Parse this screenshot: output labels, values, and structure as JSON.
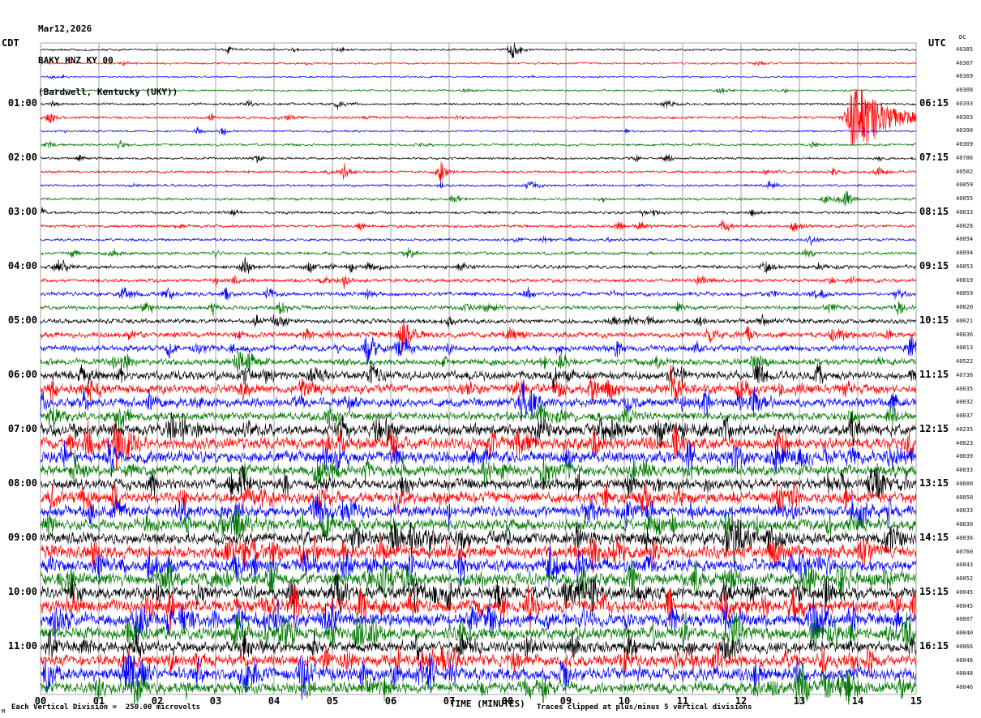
{
  "header": {
    "date": "Mar12,2026",
    "station": "BAKY HNZ KY 00",
    "location": "(Bardwell, Kentucky (UKY))"
  },
  "axes": {
    "left_timezone": "CDT",
    "right_timezone": "UTC",
    "dc_label": "DC",
    "x_label": "TIME (MINUTES)",
    "x_ticks": [
      "00",
      "01",
      "02",
      "03",
      "04",
      "05",
      "06",
      "07",
      "08",
      "09",
      "10",
      "11",
      "12",
      "13",
      "14",
      "15"
    ]
  },
  "footer": {
    "scale_note": "Each Vertical Division =  250.00 microvolts",
    "clip_note": "Traces clipped at plus/minus 5 vertical divisions",
    "corner_mark": "M"
  },
  "chart_data": {
    "type": "line",
    "subtype": "helicorder-seismogram",
    "xlabel": "TIME (MINUTES)",
    "x_range": [
      0,
      15
    ],
    "minutes_per_row": 15,
    "start_cdt": "00:00",
    "start_utc": "05:15",
    "clip_note_divisions": 5,
    "microvolts_per_division": 250.0,
    "grid_color": "#8a8a8a",
    "palette": {
      "black": "#000000",
      "red": "#ff0000",
      "blue": "#0000ff",
      "green": "#007700"
    },
    "rows": [
      {
        "cdt": "",
        "utc": "",
        "dc": "40385",
        "color": "black",
        "amp": 0.6
      },
      {
        "cdt": "",
        "utc": "",
        "dc": "40307",
        "color": "red",
        "amp": 0.6
      },
      {
        "cdt": "",
        "utc": "",
        "dc": "40369",
        "color": "blue",
        "amp": 0.5
      },
      {
        "cdt": "",
        "utc": "",
        "dc": "40308",
        "color": "green",
        "amp": 0.6
      },
      {
        "cdt": "01:00",
        "utc": "06:15",
        "dc": "40393",
        "color": "black",
        "amp": 0.7
      },
      {
        "cdt": "",
        "utc": "",
        "dc": "40303",
        "color": "red",
        "amp": 0.8
      },
      {
        "cdt": "",
        "utc": "",
        "dc": "40390",
        "color": "blue",
        "amp": 0.6
      },
      {
        "cdt": "",
        "utc": "",
        "dc": "40309",
        "color": "green",
        "amp": 0.7
      },
      {
        "cdt": "02:00",
        "utc": "07:15",
        "dc": "40786",
        "color": "black",
        "amp": 0.7
      },
      {
        "cdt": "",
        "utc": "",
        "dc": "40502",
        "color": "red",
        "amp": 0.8
      },
      {
        "cdt": "",
        "utc": "",
        "dc": "40059",
        "color": "blue",
        "amp": 0.7
      },
      {
        "cdt": "",
        "utc": "",
        "dc": "40055",
        "color": "green",
        "amp": 0.8
      },
      {
        "cdt": "03:00",
        "utc": "08:15",
        "dc": "40033",
        "color": "black",
        "amp": 0.8
      },
      {
        "cdt": "",
        "utc": "",
        "dc": "40028",
        "color": "red",
        "amp": 0.9
      },
      {
        "cdt": "",
        "utc": "",
        "dc": "40094",
        "color": "blue",
        "amp": 0.8
      },
      {
        "cdt": "",
        "utc": "",
        "dc": "40094",
        "color": "green",
        "amp": 0.9
      },
      {
        "cdt": "04:00",
        "utc": "09:15",
        "dc": "40053",
        "color": "black",
        "amp": 1.1
      },
      {
        "cdt": "",
        "utc": "",
        "dc": "40019",
        "color": "red",
        "amp": 1.1
      },
      {
        "cdt": "",
        "utc": "",
        "dc": "40059",
        "color": "blue",
        "amp": 1.2
      },
      {
        "cdt": "",
        "utc": "",
        "dc": "40020",
        "color": "green",
        "amp": 1.2
      },
      {
        "cdt": "05:00",
        "utc": "10:15",
        "dc": "40021",
        "color": "black",
        "amp": 1.4
      },
      {
        "cdt": "",
        "utc": "",
        "dc": "40036",
        "color": "red",
        "amp": 1.6
      },
      {
        "cdt": "",
        "utc": "",
        "dc": "40013",
        "color": "blue",
        "amp": 1.8
      },
      {
        "cdt": "",
        "utc": "",
        "dc": "40522",
        "color": "green",
        "amp": 1.8
      },
      {
        "cdt": "06:00",
        "utc": "11:15",
        "dc": "40736",
        "color": "black",
        "amp": 2.4
      },
      {
        "cdt": "",
        "utc": "",
        "dc": "40035",
        "color": "red",
        "amp": 2.6
      },
      {
        "cdt": "",
        "utc": "",
        "dc": "40032",
        "color": "blue",
        "amp": 2.6
      },
      {
        "cdt": "",
        "utc": "",
        "dc": "40037",
        "color": "green",
        "amp": 2.4
      },
      {
        "cdt": "07:00",
        "utc": "12:15",
        "dc": "40235",
        "color": "black",
        "amp": 3.2
      },
      {
        "cdt": "",
        "utc": "",
        "dc": "40023",
        "color": "red",
        "amp": 3.4
      },
      {
        "cdt": "",
        "utc": "",
        "dc": "40039",
        "color": "blue",
        "amp": 3.4
      },
      {
        "cdt": "",
        "utc": "",
        "dc": "40033",
        "color": "green",
        "amp": 3.0
      },
      {
        "cdt": "08:00",
        "utc": "13:15",
        "dc": "40600",
        "color": "black",
        "amp": 3.0
      },
      {
        "cdt": "",
        "utc": "",
        "dc": "40050",
        "color": "red",
        "amp": 3.2
      },
      {
        "cdt": "",
        "utc": "",
        "dc": "40033",
        "color": "blue",
        "amp": 3.2
      },
      {
        "cdt": "",
        "utc": "",
        "dc": "40030",
        "color": "green",
        "amp": 3.2
      },
      {
        "cdt": "09:00",
        "utc": "14:15",
        "dc": "40036",
        "color": "black",
        "amp": 3.4
      },
      {
        "cdt": "",
        "utc": "",
        "dc": "40760",
        "color": "red",
        "amp": 3.6
      },
      {
        "cdt": "",
        "utc": "",
        "dc": "40043",
        "color": "blue",
        "amp": 3.6
      },
      {
        "cdt": "",
        "utc": "",
        "dc": "40052",
        "color": "green",
        "amp": 3.8
      },
      {
        "cdt": "10:00",
        "utc": "15:15",
        "dc": "40045",
        "color": "black",
        "amp": 3.6
      },
      {
        "cdt": "",
        "utc": "",
        "dc": "40045",
        "color": "red",
        "amp": 3.8
      },
      {
        "cdt": "",
        "utc": "",
        "dc": "40007",
        "color": "blue",
        "amp": 3.8
      },
      {
        "cdt": "",
        "utc": "",
        "dc": "40040",
        "color": "green",
        "amp": 3.6
      },
      {
        "cdt": "11:00",
        "utc": "16:15",
        "dc": "40066",
        "color": "black",
        "amp": 3.2
      },
      {
        "cdt": "",
        "utc": "",
        "dc": "40046",
        "color": "red",
        "amp": 3.4
      },
      {
        "cdt": "",
        "utc": "",
        "dc": "40048",
        "color": "blue",
        "amp": 3.6
      },
      {
        "cdt": "",
        "utc": "",
        "dc": "40046",
        "color": "green",
        "amp": 3.2
      }
    ],
    "events": [
      {
        "r": 0,
        "m": 8.1,
        "a": 10,
        "w": 0.08
      },
      {
        "r": 4,
        "m": 0.2,
        "a": 4,
        "w": 0.05
      },
      {
        "r": 5,
        "m": 13.9,
        "a": 40,
        "w": 0.5
      },
      {
        "r": 5,
        "m": 0.15,
        "a": 6,
        "w": 0.05
      },
      {
        "r": 6,
        "m": 2.7,
        "a": 3,
        "w": 0.05
      },
      {
        "r": 8,
        "m": 3.7,
        "a": 4,
        "w": 0.06
      },
      {
        "r": 9,
        "m": 5.2,
        "a": 8,
        "w": 0.06
      },
      {
        "r": 9,
        "m": 6.85,
        "a": 10,
        "w": 0.08
      },
      {
        "r": 11,
        "m": 13.8,
        "a": 9,
        "w": 0.1
      },
      {
        "r": 12,
        "m": 3.3,
        "a": 3,
        "w": 0.05
      },
      {
        "r": 13,
        "m": 9.9,
        "a": 4,
        "w": 0.06
      },
      {
        "r": 14,
        "m": 13.2,
        "a": 5,
        "w": 0.08
      },
      {
        "r": 15,
        "m": 3.0,
        "a": 4,
        "w": 0.06
      },
      {
        "r": 16,
        "m": 0.3,
        "a": 6,
        "w": 0.08
      },
      {
        "r": 16,
        "m": 3.5,
        "a": 9,
        "w": 0.1
      },
      {
        "r": 16,
        "m": 4.6,
        "a": 6,
        "w": 0.08
      },
      {
        "r": 16,
        "m": 12.4,
        "a": 8,
        "w": 0.1
      },
      {
        "r": 17,
        "m": 5.2,
        "a": 7,
        "w": 0.08
      },
      {
        "r": 17,
        "m": 13.9,
        "a": 5,
        "w": 0.06
      },
      {
        "r": 18,
        "m": 3.9,
        "a": 7,
        "w": 0.08
      },
      {
        "r": 18,
        "m": 5.6,
        "a": 6,
        "w": 0.06
      },
      {
        "r": 18,
        "m": 8.35,
        "a": 6,
        "w": 0.06
      },
      {
        "r": 18,
        "m": 12.5,
        "a": 6,
        "w": 0.06
      },
      {
        "r": 18,
        "m": 13.4,
        "a": 5,
        "w": 0.06
      },
      {
        "r": 19,
        "m": 2.95,
        "a": 7,
        "w": 0.08
      },
      {
        "r": 19,
        "m": 14.7,
        "a": 8,
        "w": 0.08
      },
      {
        "r": 20,
        "m": 3.7,
        "a": 6,
        "w": 0.08
      },
      {
        "r": 20,
        "m": 10.4,
        "a": 5,
        "w": 0.06
      },
      {
        "r": 20,
        "m": 11.3,
        "a": 5,
        "w": 0.06
      },
      {
        "r": 21,
        "m": 6.2,
        "a": 16,
        "w": 0.15
      },
      {
        "r": 21,
        "m": 4.55,
        "a": 7,
        "w": 0.08
      },
      {
        "r": 21,
        "m": 14.5,
        "a": 6,
        "w": 0.06
      },
      {
        "r": 22,
        "m": 5.6,
        "a": 18,
        "w": 0.12
      },
      {
        "r": 22,
        "m": 2.2,
        "a": 8,
        "w": 0.08
      },
      {
        "r": 22,
        "m": 14.9,
        "a": 14,
        "w": 0.1
      },
      {
        "r": 23,
        "m": 3.55,
        "a": 12,
        "w": 0.1
      },
      {
        "r": 23,
        "m": 6.9,
        "a": 6,
        "w": 0.08
      },
      {
        "r": 23,
        "m": 8.9,
        "a": 8,
        "w": 0.1
      },
      {
        "r": 24,
        "m": 3.5,
        "a": 12,
        "w": 0.1
      },
      {
        "r": 24,
        "m": 5.65,
        "a": 16,
        "w": 0.12
      },
      {
        "r": 24,
        "m": 10.8,
        "a": 8,
        "w": 0.1
      },
      {
        "r": 24,
        "m": 12.3,
        "a": 8,
        "w": 0.1
      },
      {
        "r": 25,
        "m": 10.8,
        "a": 20,
        "w": 0.15
      },
      {
        "r": 25,
        "m": 1.0,
        "a": 8,
        "w": 0.08
      },
      {
        "r": 25,
        "m": 13.8,
        "a": 8,
        "w": 0.08
      },
      {
        "r": 25,
        "m": 8.1,
        "a": 8,
        "w": 0.08
      },
      {
        "r": 26,
        "m": 14.6,
        "a": 12,
        "w": 0.1
      },
      {
        "r": 26,
        "m": 2.7,
        "a": 8,
        "w": 0.08
      },
      {
        "r": 26,
        "m": 12.0,
        "a": 7,
        "w": 0.08
      },
      {
        "r": 27,
        "m": 8.9,
        "a": 10,
        "w": 0.1
      },
      {
        "r": 27,
        "m": 14.6,
        "a": 9,
        "w": 0.08
      },
      {
        "r": 28,
        "m": 5.75,
        "a": 18,
        "w": 0.12
      },
      {
        "r": 28,
        "m": 11.3,
        "a": 8,
        "w": 0.1
      },
      {
        "r": 28,
        "m": 0.6,
        "a": 8,
        "w": 0.08
      },
      {
        "r": 29,
        "m": 1.3,
        "a": 22,
        "w": 0.15
      },
      {
        "r": 29,
        "m": 0.5,
        "a": 10,
        "w": 0.08
      },
      {
        "r": 29,
        "m": 9.0,
        "a": 8,
        "w": 0.08
      },
      {
        "r": 30,
        "m": 5.1,
        "a": 12,
        "w": 0.1
      },
      {
        "r": 30,
        "m": 6.1,
        "a": 10,
        "w": 0.1
      },
      {
        "r": 30,
        "m": 7.4,
        "a": 9,
        "w": 0.1
      },
      {
        "r": 30,
        "m": 13.9,
        "a": 10,
        "w": 0.1
      },
      {
        "r": 31,
        "m": 5.0,
        "a": 8,
        "w": 0.1
      },
      {
        "r": 31,
        "m": 9.0,
        "a": 8,
        "w": 0.1
      },
      {
        "r": 32,
        "m": 14.2,
        "a": 16,
        "w": 0.12
      },
      {
        "r": 32,
        "m": 7.3,
        "a": 8,
        "w": 0.08
      },
      {
        "r": 32,
        "m": 11.4,
        "a": 8,
        "w": 0.08
      },
      {
        "r": 33,
        "m": 0.2,
        "a": 12,
        "w": 0.1
      },
      {
        "r": 33,
        "m": 3.8,
        "a": 10,
        "w": 0.1
      },
      {
        "r": 33,
        "m": 13.8,
        "a": 8,
        "w": 0.08
      },
      {
        "r": 34,
        "m": 5.35,
        "a": 14,
        "w": 0.1
      },
      {
        "r": 34,
        "m": 13.9,
        "a": 10,
        "w": 0.1
      },
      {
        "r": 35,
        "m": 13.9,
        "a": 12,
        "w": 0.1
      },
      {
        "r": 35,
        "m": 8.0,
        "a": 8,
        "w": 0.08
      },
      {
        "r": 36,
        "m": 14.6,
        "a": 16,
        "w": 0.12
      },
      {
        "r": 36,
        "m": 8.0,
        "a": 9,
        "w": 0.08
      },
      {
        "r": 36,
        "m": 10.5,
        "a": 8,
        "w": 0.08
      },
      {
        "r": 37,
        "m": 0.9,
        "a": 14,
        "w": 0.1
      },
      {
        "r": 37,
        "m": 10.5,
        "a": 9,
        "w": 0.08
      },
      {
        "r": 38,
        "m": 1.0,
        "a": 12,
        "w": 0.1
      },
      {
        "r": 38,
        "m": 4.5,
        "a": 10,
        "w": 0.1
      },
      {
        "r": 38,
        "m": 13.3,
        "a": 10,
        "w": 0.1
      },
      {
        "r": 38,
        "m": 2.2,
        "a": 9,
        "w": 0.08
      },
      {
        "r": 39,
        "m": 2.2,
        "a": 16,
        "w": 0.12
      },
      {
        "r": 39,
        "m": 3.2,
        "a": 12,
        "w": 0.1
      },
      {
        "r": 39,
        "m": 9.3,
        "a": 14,
        "w": 0.12
      },
      {
        "r": 39,
        "m": 13.1,
        "a": 10,
        "w": 0.1
      },
      {
        "r": 40,
        "m": 2.0,
        "a": 10,
        "w": 0.1
      },
      {
        "r": 40,
        "m": 9.3,
        "a": 12,
        "w": 0.12
      },
      {
        "r": 40,
        "m": 13.0,
        "a": 10,
        "w": 0.1
      },
      {
        "r": 40,
        "m": 7.0,
        "a": 8,
        "w": 0.08
      },
      {
        "r": 41,
        "m": 1.85,
        "a": 18,
        "w": 0.12
      },
      {
        "r": 41,
        "m": 12.1,
        "a": 9,
        "w": 0.08
      },
      {
        "r": 42,
        "m": 3.85,
        "a": 14,
        "w": 0.1
      },
      {
        "r": 42,
        "m": 13.3,
        "a": 16,
        "w": 0.15
      },
      {
        "r": 42,
        "m": 12.0,
        "a": 10,
        "w": 0.1
      },
      {
        "r": 42,
        "m": 9.3,
        "a": 10,
        "w": 0.1
      },
      {
        "r": 43,
        "m": 3.9,
        "a": 12,
        "w": 0.1
      },
      {
        "r": 43,
        "m": 5.5,
        "a": 10,
        "w": 0.1
      },
      {
        "r": 43,
        "m": 13.5,
        "a": 10,
        "w": 0.12
      },
      {
        "r": 44,
        "m": 0.5,
        "a": 8,
        "w": 0.08
      },
      {
        "r": 44,
        "m": 7.2,
        "a": 16,
        "w": 0.12
      },
      {
        "r": 44,
        "m": 3.8,
        "a": 8,
        "w": 0.08
      },
      {
        "r": 45,
        "m": 1.5,
        "a": 12,
        "w": 0.1
      },
      {
        "r": 45,
        "m": 13.4,
        "a": 14,
        "w": 0.12
      },
      {
        "r": 45,
        "m": 10.9,
        "a": 9,
        "w": 0.08
      },
      {
        "r": 46,
        "m": 1.55,
        "a": 20,
        "w": 0.15
      },
      {
        "r": 46,
        "m": 5.5,
        "a": 12,
        "w": 0.1
      },
      {
        "r": 46,
        "m": 9.0,
        "a": 9,
        "w": 0.08
      },
      {
        "r": 47,
        "m": 5.6,
        "a": 10,
        "w": 0.1
      },
      {
        "r": 47,
        "m": 13.7,
        "a": 12,
        "w": 0.1
      },
      {
        "r": 47,
        "m": 2.5,
        "a": 8,
        "w": 0.08
      }
    ]
  }
}
